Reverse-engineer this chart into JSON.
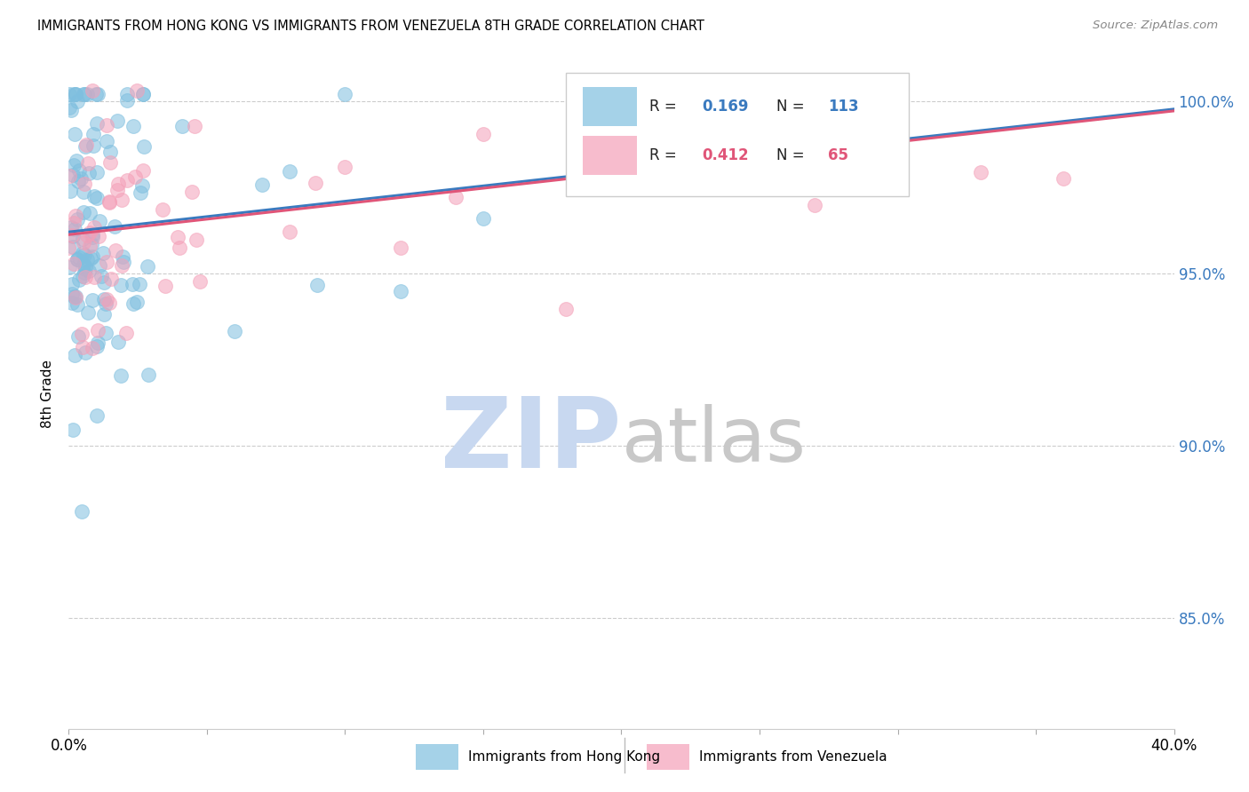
{
  "title": "IMMIGRANTS FROM HONG KONG VS IMMIGRANTS FROM VENEZUELA 8TH GRADE CORRELATION CHART",
  "source": "Source: ZipAtlas.com",
  "ylabel": "8th Grade",
  "ytick_values": [
    0.85,
    0.9,
    0.95,
    1.0
  ],
  "xlim": [
    0.0,
    0.4
  ],
  "ylim": [
    0.818,
    1.012
  ],
  "color_blue": "#7fbfdf",
  "color_pink": "#f4a0b8",
  "line_color_blue": "#3a7abf",
  "line_color_pink": "#e05578",
  "watermark_zip_color": "#c8d8f0",
  "watermark_atlas_color": "#c8c8c8",
  "legend_r1": "0.169",
  "legend_n1": "113",
  "legend_r2": "0.412",
  "legend_n2": "65"
}
